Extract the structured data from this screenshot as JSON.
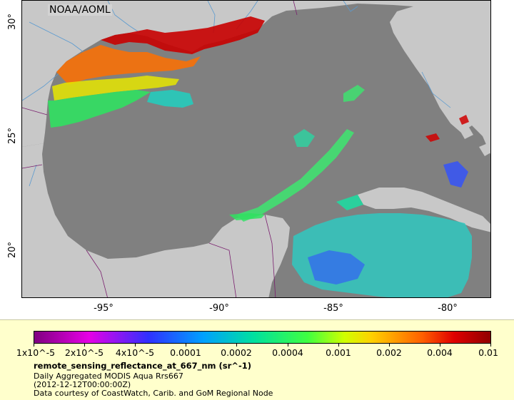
{
  "map": {
    "credit": "NOAA/AOML",
    "lat_ticks": [
      "30°",
      "25°",
      "20°"
    ],
    "lon_ticks": [
      "-95°",
      "-90°",
      "-85°",
      "-80°"
    ],
    "colors": {
      "ocean": "#808080",
      "land": "#c8c8c8",
      "rivers": "#5a9ad0",
      "borders": "#7a1f6e"
    }
  },
  "legend": {
    "variable": "remote_sensing_reflectance_at_667_nm (sr^-1)",
    "product": "Daily Aggregated MODIS Aqua Rrs667",
    "date": "(2012-12-12T00:00:00Z)",
    "courtesy": "Data courtesy of CoastWatch, Carib. and GoM Regional Node",
    "scale_labels": [
      "1x10^-5",
      "2x10^-5",
      "4x10^-5",
      "0.0001",
      "0.0002",
      "0.0004",
      "0.001",
      "0.002",
      "0.004",
      "0.01"
    ]
  }
}
